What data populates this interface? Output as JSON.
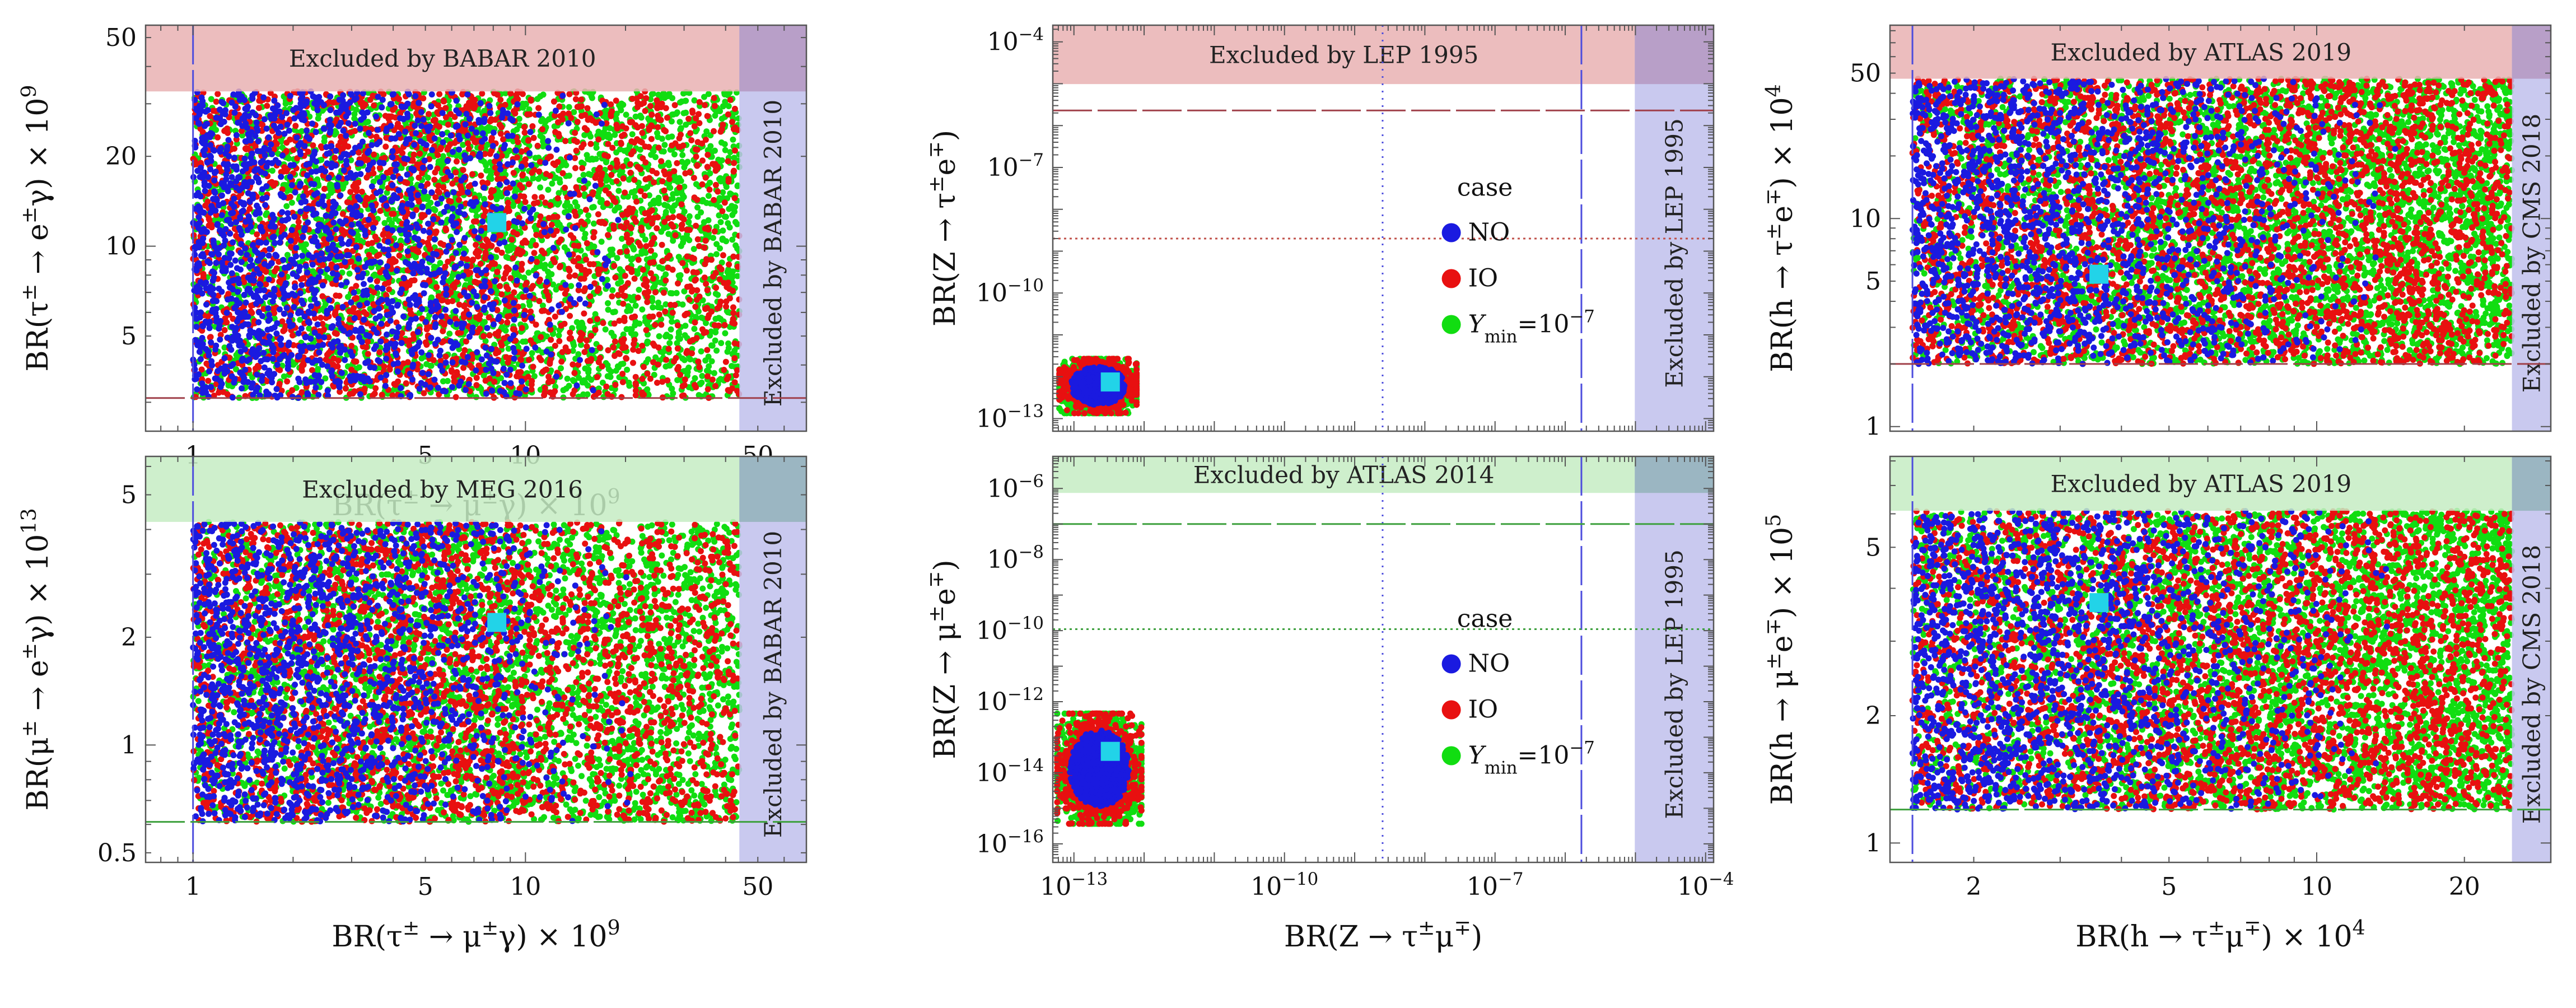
{
  "figure": {
    "scatter_colors": {
      "NO": "#1a1ae0",
      "IO": "#e81010",
      "Ymin": "#11dd11"
    },
    "highlight_color": "#22d3e8",
    "band_colors": {
      "red": "#e9b1b3",
      "green": "#c6ecc3",
      "blue": "#c0c0ec"
    },
    "legend": {
      "title": "case",
      "entries": [
        {
          "key": "NO",
          "label": "NO"
        },
        {
          "key": "IO",
          "label": "IO"
        },
        {
          "key": "Ymin",
          "label": "Y",
          "sub": "min",
          "eq": "=10",
          "sup": "−7"
        }
      ]
    }
  },
  "chart_data": [
    {
      "id": "tau_e_gamma",
      "type": "scatter",
      "xscale": "log",
      "yscale": "log",
      "xlim": [
        0.72,
        70
      ],
      "ylim": [
        2.4,
        55
      ],
      "xticks": [
        {
          "v": 1,
          "t": "1"
        },
        {
          "v": 5,
          "t": "5"
        },
        {
          "v": 10,
          "t": "10"
        },
        {
          "v": 50,
          "t": "50"
        }
      ],
      "yticks": [
        {
          "v": 5,
          "t": "5"
        },
        {
          "v": 10,
          "t": "10"
        },
        {
          "v": 20,
          "t": "20"
        },
        {
          "v": 50,
          "t": "50"
        }
      ],
      "xlabel_parts": [
        {
          "t": "BR(τ"
        },
        {
          "t": "±",
          "s": "sup"
        },
        {
          "t": " → μ"
        },
        {
          "t": "±",
          "s": "sup"
        },
        {
          "t": "γ) × 10"
        },
        {
          "t": "9",
          "s": "sup"
        }
      ],
      "ylabel_parts": [
        {
          "t": "BR(τ"
        },
        {
          "t": "±",
          "s": "sup"
        },
        {
          "t": " → e"
        },
        {
          "t": "±",
          "s": "sup"
        },
        {
          "t": "γ) × 10"
        },
        {
          "t": "9",
          "s": "sup"
        }
      ],
      "bands": [
        {
          "axis": "y",
          "from": 33,
          "to": 55,
          "color": "red",
          "label": "Excluded by BABAR 2010"
        },
        {
          "axis": "x",
          "from": 44,
          "to": 70,
          "color": "blue",
          "label": "Excluded by BABAR 2010"
        }
      ],
      "lines": [
        {
          "axis": "x",
          "value": 1,
          "color": "#4d4ddd",
          "dash": "70,10"
        },
        {
          "axis": "y",
          "value": 3.1,
          "color": "#a0404a",
          "dash": "70,10"
        }
      ],
      "cloud": {
        "x": [
          1,
          44
        ],
        "y": [
          3.1,
          33
        ],
        "x_fade": 10,
        "count": 9000
      },
      "highlight": {
        "x": 8.2,
        "y": 12
      }
    },
    {
      "id": "Z_tau_e",
      "type": "scatter",
      "xscale": "log",
      "yscale": "log",
      "xlim": [
        5e-14,
        0.00013
      ],
      "ylim": [
        5e-14,
        0.00025
      ],
      "xticks": [],
      "yticks": [
        {
          "v": 1e-13,
          "t": "10",
          "e": "−13"
        },
        {
          "v": 1e-10,
          "t": "10",
          "e": "−10"
        },
        {
          "v": 1e-07,
          "t": "10",
          "e": "−7"
        },
        {
          "v": 0.0001,
          "t": "10",
          "e": "−4"
        }
      ],
      "xlabel_parts": [],
      "ylabel_parts": [
        {
          "t": "BR(Z → τ"
        },
        {
          "t": "±",
          "s": "sup"
        },
        {
          "t": "e"
        },
        {
          "t": "∓",
          "s": "sup"
        },
        {
          "t": ")"
        }
      ],
      "bands": [
        {
          "axis": "y",
          "from": 9.8e-06,
          "to": 0.00025,
          "color": "red",
          "label": "Excluded by LEP 1995"
        },
        {
          "axis": "x",
          "from": 9.8e-06,
          "to": 0.00013,
          "color": "blue",
          "label": "Excluded by LEP 1995"
        }
      ],
      "lines": [
        {
          "axis": "x",
          "value": 2.5e-09,
          "color": "#4d4ddd",
          "dash": "3,10"
        },
        {
          "axis": "x",
          "value": 1.7e-06,
          "color": "#4d4ddd",
          "dash": "70,10"
        },
        {
          "axis": "y",
          "value": 2e-09,
          "color": "#c0504a",
          "dash": "4,6"
        },
        {
          "axis": "y",
          "value": 2.3e-06,
          "color": "#a0404a",
          "dash": "70,10"
        }
      ],
      "cloud": {
        "blob": true,
        "cx": 2.2e-13,
        "cy": 6e-13,
        "rx": 0.55,
        "ry": 0.65,
        "count": 2400
      },
      "highlight": {
        "x": 3.3e-13,
        "y": 7.5e-13
      },
      "legend": true
    },
    {
      "id": "h_tau_e",
      "type": "scatter",
      "xscale": "log",
      "yscale": "log",
      "xlim": [
        1.35,
        30
      ],
      "ylim": [
        0.95,
        85
      ],
      "xticks": [],
      "yticks": [
        {
          "v": 1,
          "t": "1"
        },
        {
          "v": 5,
          "t": "5"
        },
        {
          "v": 10,
          "t": "10"
        },
        {
          "v": 50,
          "t": "50"
        }
      ],
      "xlabel_parts": [],
      "ylabel_parts": [
        {
          "t": "BR(h → τ"
        },
        {
          "t": "±",
          "s": "sup"
        },
        {
          "t": "e"
        },
        {
          "t": "∓",
          "s": "sup"
        },
        {
          "t": ") × 10"
        },
        {
          "t": "4",
          "s": "sup"
        }
      ],
      "bands": [
        {
          "axis": "y",
          "from": 47,
          "to": 85,
          "color": "red",
          "label": "Excluded by ATLAS 2019"
        },
        {
          "axis": "x",
          "from": 25,
          "to": 30,
          "color": "blue",
          "label": "Excluded by CMS 2018"
        }
      ],
      "lines": [
        {
          "axis": "x",
          "value": 1.5,
          "color": "#4d4ddd",
          "dash": "70,10"
        },
        {
          "axis": "y",
          "value": 2.0,
          "color": "#a0404a",
          "dash": "70,10"
        }
      ],
      "cloud": {
        "x": [
          1.5,
          25
        ],
        "y": [
          2.0,
          47
        ],
        "count": 9000
      },
      "highlight": {
        "x": 3.6,
        "y": 5.4
      }
    },
    {
      "id": "mu_e_gamma",
      "type": "scatter",
      "xscale": "log",
      "yscale": "log",
      "xlim": [
        0.72,
        70
      ],
      "ylim": [
        0.47,
        6.4
      ],
      "xticks": [
        {
          "v": 1,
          "t": "1"
        },
        {
          "v": 5,
          "t": "5"
        },
        {
          "v": 10,
          "t": "10"
        },
        {
          "v": 50,
          "t": "50"
        }
      ],
      "yticks": [
        {
          "v": 0.5,
          "t": "0.5"
        },
        {
          "v": 1,
          "t": "1"
        },
        {
          "v": 2,
          "t": "2"
        },
        {
          "v": 5,
          "t": "5"
        }
      ],
      "xlabel_parts": [
        {
          "t": "BR(τ"
        },
        {
          "t": "±",
          "s": "sup"
        },
        {
          "t": " → μ"
        },
        {
          "t": "±",
          "s": "sup"
        },
        {
          "t": "γ) × 10"
        },
        {
          "t": "9",
          "s": "sup"
        }
      ],
      "ylabel_parts": [
        {
          "t": "BR(μ"
        },
        {
          "t": "±",
          "s": "sup"
        },
        {
          "t": " → e"
        },
        {
          "t": "±",
          "s": "sup"
        },
        {
          "t": "γ) × 10"
        },
        {
          "t": "13",
          "s": "sup"
        }
      ],
      "bands": [
        {
          "axis": "y",
          "from": 4.2,
          "to": 6.4,
          "color": "green",
          "label": "Excluded by MEG 2016"
        },
        {
          "axis": "x",
          "from": 44,
          "to": 70,
          "color": "blue",
          "label": "Excluded by BABAR 2010"
        }
      ],
      "lines": [
        {
          "axis": "x",
          "value": 1,
          "color": "#4d4ddd",
          "dash": "70,10"
        },
        {
          "axis": "y",
          "value": 0.61,
          "color": "#3da03d",
          "dash": "70,10"
        }
      ],
      "cloud": {
        "x": [
          1,
          44
        ],
        "y": [
          0.61,
          4.2
        ],
        "x_fade": 10,
        "count": 9000
      },
      "highlight": {
        "x": 8.2,
        "y": 2.2
      }
    },
    {
      "id": "Z_mu_e",
      "type": "scatter",
      "xscale": "log",
      "yscale": "log",
      "xlim": [
        5e-14,
        0.00013
      ],
      "ylim": [
        3e-17,
        8e-06
      ],
      "xticks": [
        {
          "v": 1e-13,
          "t": "10",
          "e": "−13"
        },
        {
          "v": 1e-10,
          "t": "10",
          "e": "−10"
        },
        {
          "v": 1e-07,
          "t": "10",
          "e": "−7"
        },
        {
          "v": 0.0001,
          "t": "10",
          "e": "−4"
        }
      ],
      "yticks": [
        {
          "v": 1e-16,
          "t": "10",
          "e": "−16"
        },
        {
          "v": 1e-14,
          "t": "10",
          "e": "−14"
        },
        {
          "v": 1e-12,
          "t": "10",
          "e": "−12"
        },
        {
          "v": 1e-10,
          "t": "10",
          "e": "−10"
        },
        {
          "v": 1e-08,
          "t": "10",
          "e": "−8"
        },
        {
          "v": 1e-06,
          "t": "10",
          "e": "−6"
        }
      ],
      "xlabel_parts": [
        {
          "t": "BR(Z → τ"
        },
        {
          "t": "±",
          "s": "sup"
        },
        {
          "t": "μ"
        },
        {
          "t": "∓",
          "s": "sup"
        },
        {
          "t": ")"
        }
      ],
      "ylabel_parts": [
        {
          "t": "BR(Z → μ"
        },
        {
          "t": "±",
          "s": "sup"
        },
        {
          "t": "e"
        },
        {
          "t": "∓",
          "s": "sup"
        },
        {
          "t": ")"
        }
      ],
      "bands": [
        {
          "axis": "y",
          "from": 7.5e-07,
          "to": 8e-06,
          "color": "green",
          "label": "Excluded by ATLAS 2014"
        },
        {
          "axis": "x",
          "from": 9.8e-06,
          "to": 0.00013,
          "color": "blue",
          "label": "Excluded by LEP 1995"
        }
      ],
      "lines": [
        {
          "axis": "x",
          "value": 2.5e-09,
          "color": "#4d4ddd",
          "dash": "3,10"
        },
        {
          "axis": "x",
          "value": 1.7e-06,
          "color": "#4d4ddd",
          "dash": "70,10"
        },
        {
          "axis": "y",
          "value": 1.1e-10,
          "color": "#3da03d",
          "dash": "4,6"
        },
        {
          "axis": "y",
          "value": 1e-07,
          "color": "#3da03d",
          "dash": "70,10"
        }
      ],
      "cloud": {
        "blob": true,
        "cx": 2.3e-13,
        "cy": 1.3e-14,
        "rx": 0.6,
        "ry": 1.55,
        "count": 2600
      },
      "highlight": {
        "x": 3.3e-13,
        "y": 4e-14
      },
      "legend": true
    },
    {
      "id": "h_mu_e",
      "type": "scatter",
      "xscale": "log",
      "yscale": "log",
      "xlim": [
        1.35,
        30
      ],
      "ylim": [
        0.9,
        8.2
      ],
      "xticks": [
        {
          "v": 2,
          "t": "2"
        },
        {
          "v": 5,
          "t": "5"
        },
        {
          "v": 10,
          "t": "10"
        },
        {
          "v": 20,
          "t": "20"
        }
      ],
      "yticks": [
        {
          "v": 1,
          "t": "1"
        },
        {
          "v": 2,
          "t": "2"
        },
        {
          "v": 5,
          "t": "5"
        }
      ],
      "xlabel_parts": [
        {
          "t": "BR(h → τ"
        },
        {
          "t": "±",
          "s": "sup"
        },
        {
          "t": "μ"
        },
        {
          "t": "∓",
          "s": "sup"
        },
        {
          "t": ") × 10"
        },
        {
          "t": "4",
          "s": "sup"
        }
      ],
      "ylabel_parts": [
        {
          "t": "BR(h → μ"
        },
        {
          "t": "±",
          "s": "sup"
        },
        {
          "t": "e"
        },
        {
          "t": "∓",
          "s": "sup"
        },
        {
          "t": ") × 10"
        },
        {
          "t": "5",
          "s": "sup"
        }
      ],
      "bands": [
        {
          "axis": "y",
          "from": 6.1,
          "to": 8.2,
          "color": "green",
          "label": "Excluded by ATLAS 2019"
        },
        {
          "axis": "x",
          "from": 25,
          "to": 30,
          "color": "blue",
          "label": "Excluded by CMS 2018"
        }
      ],
      "lines": [
        {
          "axis": "x",
          "value": 1.5,
          "color": "#4d4ddd",
          "dash": "70,10"
        },
        {
          "axis": "y",
          "value": 1.2,
          "color": "#3da03d",
          "dash": "70,10"
        }
      ],
      "cloud": {
        "x": [
          1.5,
          25
        ],
        "y": [
          1.2,
          6.1
        ],
        "count": 9000
      },
      "highlight": {
        "x": 3.6,
        "y": 3.7
      }
    }
  ]
}
